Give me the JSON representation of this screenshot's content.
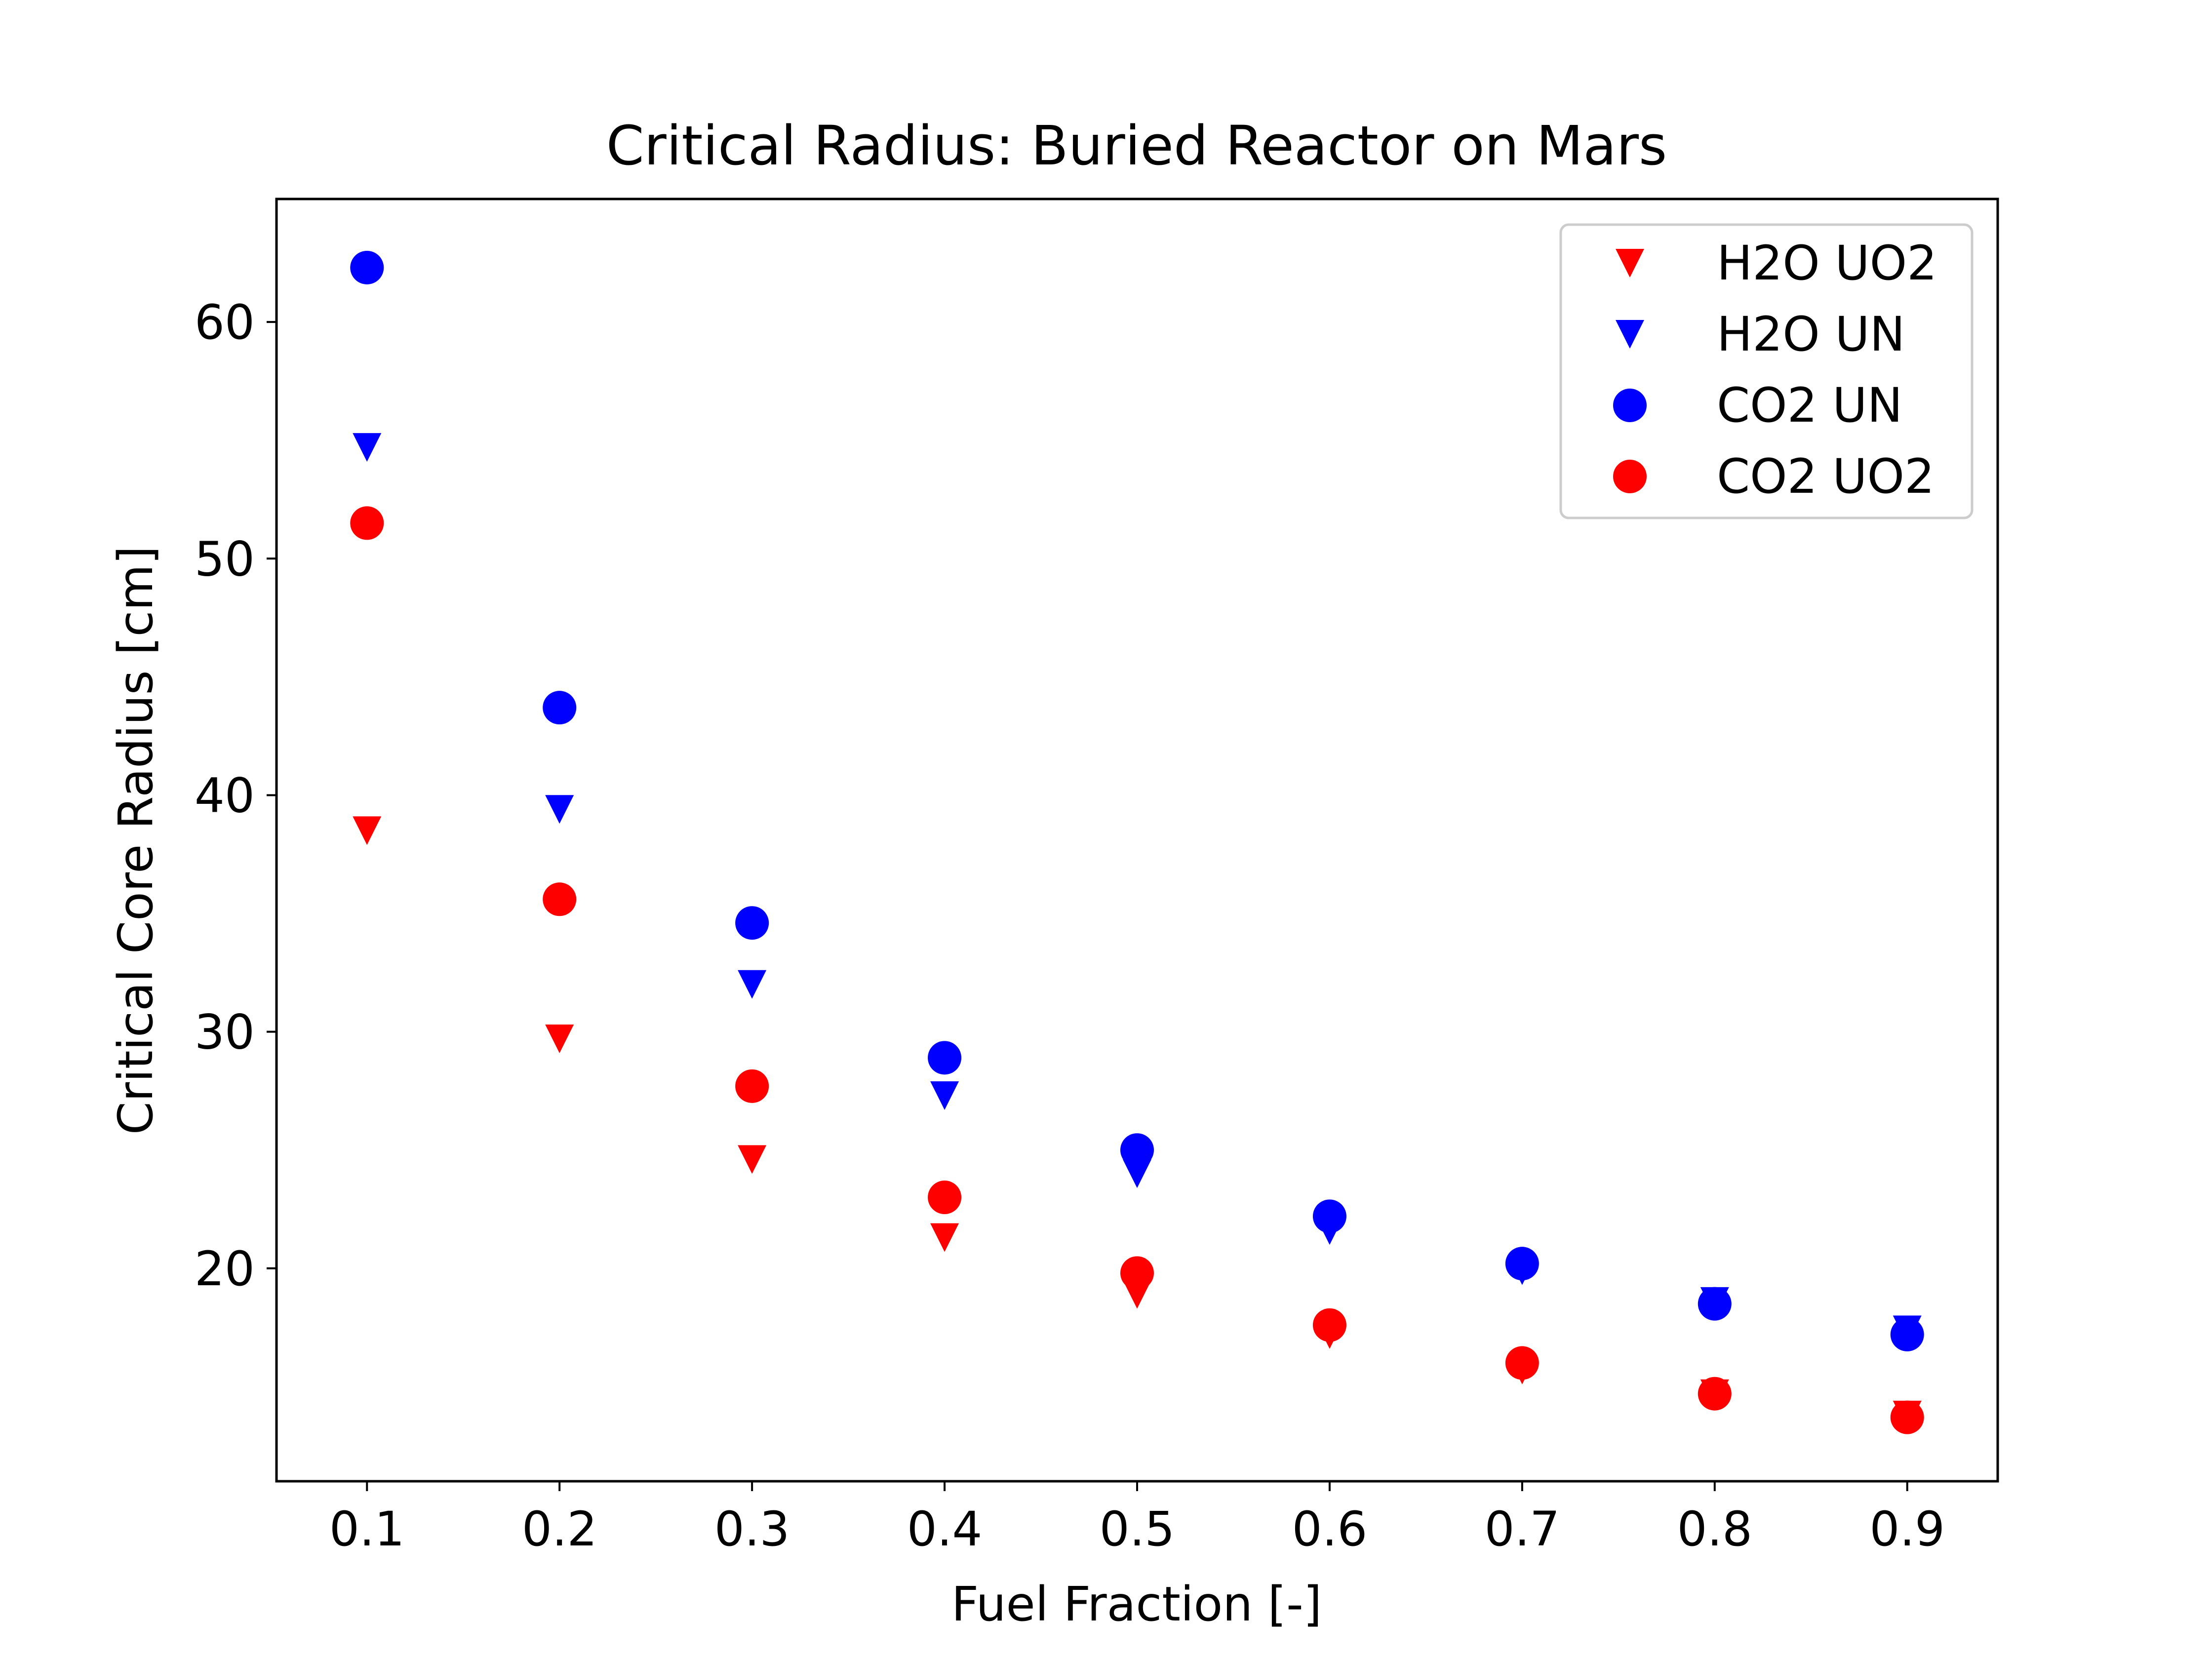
{
  "chart_data": {
    "type": "scatter",
    "title": "Critical Radius: Buried Reactor on Mars",
    "xlabel": "Fuel Fraction [-]",
    "ylabel": "Critical Core Radius [cm]",
    "xlim": [
      0.053,
      0.947
    ],
    "ylim": [
      11,
      65.2
    ],
    "xticks": [
      0.1,
      0.2,
      0.3,
      0.4,
      0.5,
      0.6,
      0.7,
      0.8,
      0.9
    ],
    "xtick_labels": [
      "0.1",
      "0.2",
      "0.3",
      "0.4",
      "0.5",
      "0.6",
      "0.7",
      "0.8",
      "0.9"
    ],
    "yticks": [
      20,
      30,
      40,
      50,
      60
    ],
    "ytick_labels": [
      "20",
      "30",
      "40",
      "50",
      "60"
    ],
    "grid": false,
    "legend_position": "top-right",
    "x": [
      0.1,
      0.2,
      0.3,
      0.4,
      0.5,
      0.6,
      0.7,
      0.8,
      0.9
    ],
    "series": [
      {
        "name": "H2O UO2",
        "marker": "triangle-down",
        "color": "#ff0000",
        "values": [
          38.5,
          29.7,
          24.6,
          21.3,
          18.9,
          17.2,
          15.7,
          14.7,
          13.8
        ]
      },
      {
        "name": "H2O UN",
        "marker": "triangle-down",
        "color": "#0000ff",
        "values": [
          54.7,
          39.4,
          32.0,
          27.3,
          24.0,
          21.6,
          19.9,
          18.6,
          17.4
        ]
      },
      {
        "name": "CO2 UN",
        "marker": "circle",
        "color": "#0000ff",
        "values": [
          62.3,
          43.7,
          34.6,
          28.9,
          25.0,
          22.2,
          20.2,
          18.5,
          17.2
        ]
      },
      {
        "name": "CO2 UO2",
        "marker": "circle",
        "color": "#ff0000",
        "values": [
          51.5,
          35.6,
          27.7,
          23.0,
          19.8,
          17.6,
          16.0,
          14.7,
          13.7
        ]
      }
    ]
  }
}
